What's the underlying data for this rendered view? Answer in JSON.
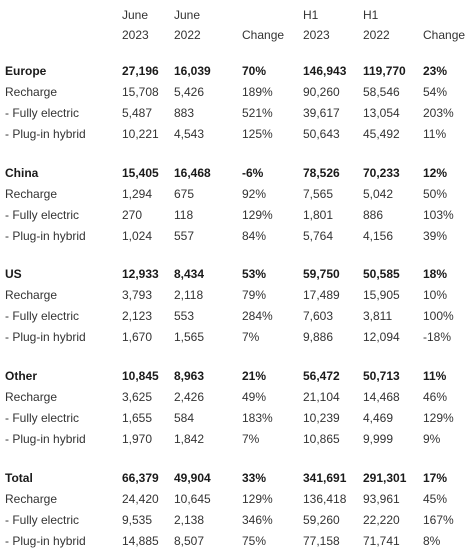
{
  "header": {
    "jun23": {
      "line1": "June",
      "line2": "2023"
    },
    "jun22": {
      "line1": "June",
      "line2": "2022"
    },
    "change1": "Change",
    "h123": {
      "line1": "H1",
      "line2": "2023"
    },
    "h122": {
      "line1": "H1",
      "line2": "2022"
    },
    "change2": "Change"
  },
  "sections": [
    {
      "region": {
        "label": "Europe",
        "jun23": "27,196",
        "jun22": "16,039",
        "change1": "70%",
        "h123": "146,943",
        "h122": "119,770",
        "change2": "23%"
      },
      "rows": [
        {
          "label": "Recharge",
          "jun23": "15,708",
          "jun22": "5,426",
          "change1": "189%",
          "h123": "90,260",
          "h122": "58,546",
          "change2": "54%"
        },
        {
          "label": " - Fully electric",
          "jun23": "5,487",
          "jun22": "883",
          "change1": "521%",
          "h123": "39,617",
          "h122": "13,054",
          "change2": "203%"
        },
        {
          "label": " - Plug-in hybrid",
          "jun23": "10,221",
          "jun22": "4,543",
          "change1": "125%",
          "h123": "50,643",
          "h122": "45,492",
          "change2": "11%"
        }
      ]
    },
    {
      "region": {
        "label": "China",
        "jun23": "15,405",
        "jun22": "16,468",
        "change1": "-6%",
        "h123": "78,526",
        "h122": "70,233",
        "change2": "12%"
      },
      "rows": [
        {
          "label": "Recharge",
          "jun23": "1,294",
          "jun22": "675",
          "change1": "92%",
          "h123": "7,565",
          "h122": "5,042",
          "change2": "50%"
        },
        {
          "label": " - Fully electric",
          "jun23": "270",
          "jun22": "118",
          "change1": "129%",
          "h123": "1,801",
          "h122": "886",
          "change2": "103%"
        },
        {
          "label": " - Plug-in hybrid",
          "jun23": "1,024",
          "jun22": "557",
          "change1": "84%",
          "h123": "5,764",
          "h122": "4,156",
          "change2": "39%"
        }
      ]
    },
    {
      "region": {
        "label": "US",
        "jun23": "12,933",
        "jun22": "8,434",
        "change1": "53%",
        "h123": "59,750",
        "h122": "50,585",
        "change2": "18%"
      },
      "rows": [
        {
          "label": "Recharge",
          "jun23": "3,793",
          "jun22": "2,118",
          "change1": "79%",
          "h123": "17,489",
          "h122": "15,905",
          "change2": "10%"
        },
        {
          "label": " - Fully electric",
          "jun23": "2,123",
          "jun22": "553",
          "change1": "284%",
          "h123": "7,603",
          "h122": "3,811",
          "change2": "100%"
        },
        {
          "label": " - Plug-in hybrid",
          "jun23": "1,670",
          "jun22": "1,565",
          "change1": "7%",
          "h123": "9,886",
          "h122": "12,094",
          "change2": "-18%"
        }
      ]
    },
    {
      "region": {
        "label": "Other",
        "jun23": "10,845",
        "jun22": "8,963",
        "change1": "21%",
        "h123": "56,472",
        "h122": "50,713",
        "change2": "11%"
      },
      "rows": [
        {
          "label": "Recharge",
          "jun23": "3,625",
          "jun22": "2,426",
          "change1": "49%",
          "h123": "21,104",
          "h122": "14,468",
          "change2": "46%"
        },
        {
          "label": " - Fully electric",
          "jun23": "1,655",
          "jun22": "584",
          "change1": "183%",
          "h123": "10,239",
          "h122": "4,469",
          "change2": "129%"
        },
        {
          "label": " - Plug-in hybrid",
          "jun23": "1,970",
          "jun22": "1,842",
          "change1": "7%",
          "h123": "10,865",
          "h122": "9,999",
          "change2": "9%"
        }
      ]
    },
    {
      "region": {
        "label": "Total",
        "jun23": "66,379",
        "jun22": "49,904",
        "change1": "33%",
        "h123": "341,691",
        "h122": "291,301",
        "change2": "17%"
      },
      "rows": [
        {
          "label": "Recharge",
          "jun23": "24,420",
          "jun22": "10,645",
          "change1": "129%",
          "h123": "136,418",
          "h122": "93,961",
          "change2": "45%"
        },
        {
          "label": " - Fully electric",
          "jun23": "9,535",
          "jun22": "2,138",
          "change1": "346%",
          "h123": "59,260",
          "h122": "22,220",
          "change2": "167%"
        },
        {
          "label": " - Plug-in hybrid",
          "jun23": "14,885",
          "jun22": "8,507",
          "change1": "75%",
          "h123": "77,158",
          "h122": "71,741",
          "change2": "8%"
        }
      ]
    }
  ]
}
